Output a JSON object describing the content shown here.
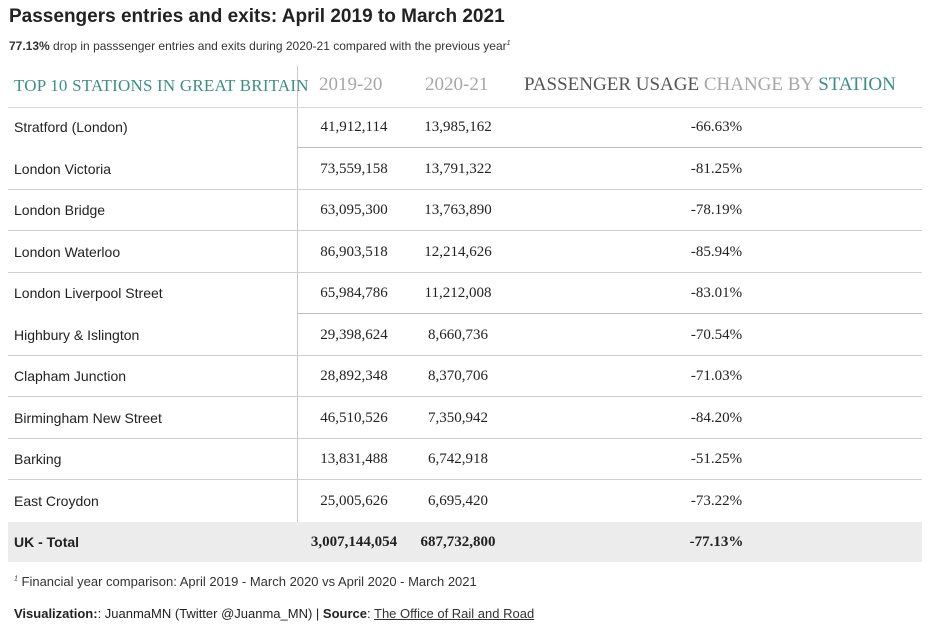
{
  "header": {
    "title": "Passengers entries and exits: April 2019 to March 2021",
    "subtitle_highlight": "77.13%",
    "subtitle_rest": " drop in passsenger entries and exits during 2020-21 compared with the previous year",
    "subtitle_marker": "1"
  },
  "chart_data": {
    "type": "table",
    "columns": {
      "station": "TOP 10 STATIONS IN GREAT BRITAIN",
      "y2019": "2019-20",
      "y2020": "2020-21",
      "change_part1": "PASSENGER USAGE",
      "change_part2": " CHANGE BY",
      "change_part3": " STATION"
    },
    "rows": [
      {
        "station": "Stratford (London)",
        "y2019": "41,912,114",
        "y2020": "13,985,162",
        "change": "-66.63%"
      },
      {
        "station": "London Victoria",
        "y2019": "73,559,158",
        "y2020": "13,791,322",
        "change": "-81.25%"
      },
      {
        "station": "London Bridge",
        "y2019": "63,095,300",
        "y2020": "13,763,890",
        "change": "-78.19%"
      },
      {
        "station": "London Waterloo",
        "y2019": "86,903,518",
        "y2020": "12,214,626",
        "change": "-85.94%"
      },
      {
        "station": "London Liverpool Street",
        "y2019": "65,984,786",
        "y2020": "11,212,008",
        "change": "-83.01%"
      },
      {
        "station": "Highbury & Islington",
        "y2019": "29,398,624",
        "y2020": "8,660,736",
        "change": "-70.54%"
      },
      {
        "station": "Clapham Junction",
        "y2019": "28,892,348",
        "y2020": "8,370,706",
        "change": "-71.03%"
      },
      {
        "station": "Birmingham New Street",
        "y2019": "46,510,526",
        "y2020": "7,350,942",
        "change": "-84.20%"
      },
      {
        "station": "Barking",
        "y2019": "13,831,488",
        "y2020": "6,742,918",
        "change": "-51.25%"
      },
      {
        "station": "East Croydon",
        "y2019": "25,005,626",
        "y2020": "6,695,420",
        "change": "-73.22%"
      }
    ],
    "total": {
      "station": "UK - Total",
      "y2019": "3,007,144,054",
      "y2020": "687,732,800",
      "change": "-77.13%"
    }
  },
  "footer": {
    "footnote_marker": "1",
    "footnote": " Financial year comparison: April 2019 - March 2020 vs April 2020 - March 2021",
    "viz_label": "Visualization:",
    "viz_text": ": JuanmaMN (Twitter @Juanma_MN) | ",
    "source_label": "Source",
    "source_sep": ": ",
    "source_link": "The Office of Rail and Road"
  },
  "colors": {
    "accent_teal": "#3d8f86",
    "muted_grey": "#a7a7a7",
    "total_bg": "#ececec"
  }
}
